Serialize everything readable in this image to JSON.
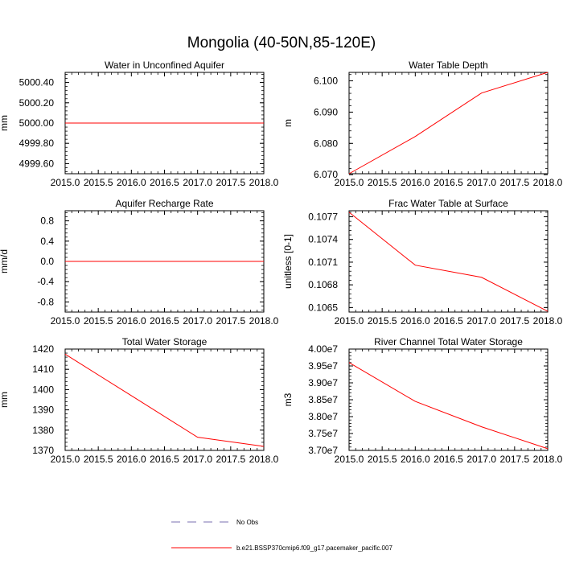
{
  "figure": {
    "title": "Mongolia (40-50N,85-120E)"
  },
  "chart_data": [
    {
      "type": "line",
      "title": "Water in Unconfined Aquifer",
      "ylabel": "mm",
      "xlim": [
        2015.0,
        2018.0
      ],
      "ylim": [
        4999.5,
        5000.5
      ],
      "xticks": [
        "2015.0",
        "2015.5",
        "2016.0",
        "2016.5",
        "2017.0",
        "2017.5",
        "2018.0"
      ],
      "yticks": [
        {
          "v": 4999.6,
          "label": "4999.60"
        },
        {
          "v": 4999.8,
          "label": "4999.80"
        },
        {
          "v": 5000.0,
          "label": "5000.00"
        },
        {
          "v": 5000.2,
          "label": "5000.20"
        },
        {
          "v": 5000.4,
          "label": "5000.40"
        }
      ],
      "series": [
        {
          "name": "b.e21.BSSP370cmip6.f09_g17.pacemaker_pacific.007",
          "color": "#ff0000",
          "x": [
            2015,
            2016,
            2017,
            2018
          ],
          "y": [
            5000.0,
            5000.0,
            5000.0,
            5000.0
          ]
        }
      ]
    },
    {
      "type": "line",
      "title": "Water Table Depth",
      "ylabel": "m",
      "xlim": [
        2015.0,
        2018.0
      ],
      "ylim": [
        6.0703,
        6.1027
      ],
      "xticks": [
        "2015.0",
        "2015.5",
        "2016.0",
        "2016.5",
        "2017.0",
        "2017.5",
        "2018.0"
      ],
      "yticks": [
        {
          "v": 6.07,
          "label": "6.070"
        },
        {
          "v": 6.08,
          "label": "6.080"
        },
        {
          "v": 6.09,
          "label": "6.090"
        },
        {
          "v": 6.1,
          "label": "6.100"
        }
      ],
      "series": [
        {
          "name": "b.e21.BSSP370cmip6.f09_g17.pacemaker_pacific.007",
          "color": "#ff0000",
          "x": [
            2015,
            2016,
            2017,
            2018
          ],
          "y": [
            6.0703,
            6.0822,
            6.0961,
            6.1027
          ]
        }
      ]
    },
    {
      "type": "line",
      "title": "Aquifer Recharge Rate",
      "ylabel": "mm/d",
      "xlim": [
        2015.0,
        2018.0
      ],
      "ylim": [
        -1.0,
        1.0
      ],
      "xticks": [
        "2015.0",
        "2015.5",
        "2016.0",
        "2016.5",
        "2017.0",
        "2017.5",
        "2018.0"
      ],
      "yticks": [
        {
          "v": -0.8,
          "label": "-0.8"
        },
        {
          "v": -0.4,
          "label": "-0.4"
        },
        {
          "v": 0.0,
          "label": "0.0"
        },
        {
          "v": 0.4,
          "label": "0.4"
        },
        {
          "v": 0.8,
          "label": "0.8"
        }
      ],
      "series": [
        {
          "name": "b.e21.BSSP370cmip6.f09_g17.pacemaker_pacific.007",
          "color": "#ff0000",
          "x": [
            2015,
            2016,
            2017,
            2018
          ],
          "y": [
            0.0,
            0.0,
            0.0,
            0.0
          ]
        }
      ]
    },
    {
      "type": "line",
      "title": "Frac Water Table at Surface",
      "ylabel": "unitless [0-1]",
      "xlim": [
        2015.0,
        2018.0
      ],
      "ylim": [
        0.10644,
        0.10778
      ],
      "xticks": [
        "2015.0",
        "2015.5",
        "2016.0",
        "2016.5",
        "2017.0",
        "2017.5",
        "2018.0"
      ],
      "yticks": [
        {
          "v": 0.1065,
          "label": "0.1065"
        },
        {
          "v": 0.1068,
          "label": "0.1068"
        },
        {
          "v": 0.1071,
          "label": "0.1071"
        },
        {
          "v": 0.1074,
          "label": "0.1074"
        },
        {
          "v": 0.1077,
          "label": "0.1077"
        }
      ],
      "series": [
        {
          "name": "b.e21.BSSP370cmip6.f09_g17.pacemaker_pacific.007",
          "color": "#ff0000",
          "x": [
            2015,
            2016,
            2017,
            2018
          ],
          "y": [
            0.10776,
            0.10706,
            0.1069,
            0.10645
          ]
        }
      ]
    },
    {
      "type": "line",
      "title": "Total Water Storage",
      "ylabel": "mm",
      "xlim": [
        2015.0,
        2018.0
      ],
      "ylim": [
        1370.0,
        1420.0
      ],
      "xticks": [
        "2015.0",
        "2015.5",
        "2016.0",
        "2016.5",
        "2017.0",
        "2017.5",
        "2018.0"
      ],
      "yticks": [
        {
          "v": 1370,
          "label": "1370"
        },
        {
          "v": 1380,
          "label": "1380"
        },
        {
          "v": 1390,
          "label": "1390"
        },
        {
          "v": 1400,
          "label": "1400"
        },
        {
          "v": 1410,
          "label": "1410"
        },
        {
          "v": 1420,
          "label": "1420"
        }
      ],
      "series": [
        {
          "name": "b.e21.BSSP370cmip6.f09_g17.pacemaker_pacific.007",
          "color": "#ff0000",
          "x": [
            2015,
            2016,
            2017,
            2018
          ],
          "y": [
            1417.5,
            1397.0,
            1376.5,
            1372.0
          ]
        }
      ]
    },
    {
      "type": "line",
      "title": "River Channel Total Water Storage",
      "ylabel": "m3",
      "xlim": [
        2015.0,
        2018.0
      ],
      "ylim": [
        37000000,
        40000000
      ],
      "xticks": [
        "2015.0",
        "2015.5",
        "2016.0",
        "2016.5",
        "2017.0",
        "2017.5",
        "2018.0"
      ],
      "yticks": [
        {
          "v": 37000000,
          "label": "3.70e7"
        },
        {
          "v": 37500000,
          "label": "3.75e7"
        },
        {
          "v": 38000000,
          "label": "3.80e7"
        },
        {
          "v": 38500000,
          "label": "3.85e7"
        },
        {
          "v": 39000000,
          "label": "3.90e7"
        },
        {
          "v": 39500000,
          "label": "3.95e7"
        },
        {
          "v": 40000000,
          "label": "4.00e7"
        }
      ],
      "series": [
        {
          "name": "b.e21.BSSP370cmip6.f09_g17.pacemaker_pacific.007",
          "color": "#ff0000",
          "x": [
            2015,
            2016,
            2017,
            2018
          ],
          "y": [
            39600000,
            38450000,
            37700000,
            37050000
          ]
        }
      ]
    }
  ],
  "legend": {
    "entries": [
      {
        "label": "No Obs",
        "style": "dashed",
        "color": "#7a6fb0"
      },
      {
        "label": "b.e21.BSSP370cmip6.f09_g17.pacemaker_pacific.007",
        "style": "solid",
        "color": "#ff0000"
      }
    ]
  }
}
